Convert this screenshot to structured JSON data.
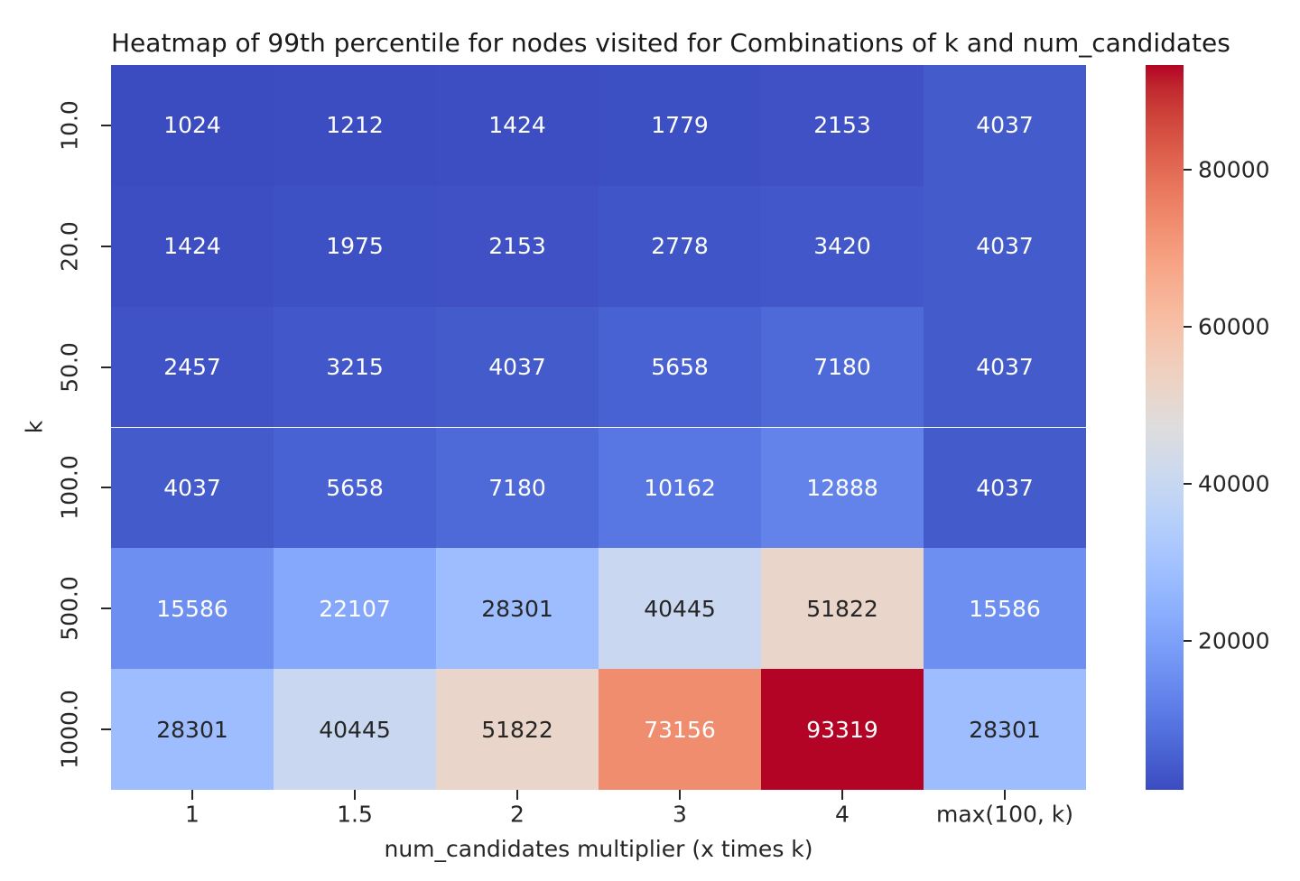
{
  "chart_data": {
    "type": "heatmap",
    "title": "Heatmap of 99th percentile for nodes visited for Combinations of k and num_candidates",
    "xlabel": "num_candidates multiplier (x times k)",
    "ylabel": "k",
    "x_ticklabels": [
      "1",
      "1.5",
      "2",
      "3",
      "4",
      "max(100, k)"
    ],
    "y_ticklabels": [
      "10.0",
      "20.0",
      "50.0",
      "100.0",
      "500.0",
      "1000.0"
    ],
    "values": [
      [
        1024,
        1212,
        1424,
        1779,
        2153,
        4037
      ],
      [
        1424,
        1975,
        2153,
        2778,
        3420,
        4037
      ],
      [
        2457,
        3215,
        4037,
        5658,
        7180,
        4037
      ],
      [
        4037,
        5658,
        7180,
        10162,
        12888,
        4037
      ],
      [
        15586,
        22107,
        28301,
        40445,
        51822,
        15586
      ],
      [
        28301,
        40445,
        51822,
        73156,
        93319,
        28301
      ]
    ],
    "vmin": 1024,
    "vmax": 93319,
    "colorbar": {
      "tick_values": [
        20000,
        40000,
        60000,
        80000
      ],
      "tick_labels": [
        "20000",
        "40000",
        "60000",
        "80000"
      ],
      "position": "right"
    },
    "colormap": {
      "name": "coolwarm",
      "anchors_rgb": [
        [
          59,
          76,
          192
        ],
        [
          68,
          90,
          204
        ],
        [
          77,
          104,
          215
        ],
        [
          87,
          117,
          225
        ],
        [
          98,
          130,
          234
        ],
        [
          108,
          142,
          241
        ],
        [
          119,
          154,
          247
        ],
        [
          130,
          165,
          251
        ],
        [
          141,
          176,
          254
        ],
        [
          152,
          185,
          255
        ],
        [
          163,
          194,
          255
        ],
        [
          174,
          201,
          253
        ],
        [
          184,
          208,
          249
        ],
        [
          194,
          213,
          244
        ],
        [
          204,
          217,
          238
        ],
        [
          213,
          219,
          230
        ],
        [
          221,
          221,
          221
        ],
        [
          229,
          216,
          209
        ],
        [
          236,
          211,
          197
        ],
        [
          241,
          204,
          185
        ],
        [
          245,
          196,
          173
        ],
        [
          247,
          187,
          160
        ],
        [
          247,
          177,
          148
        ],
        [
          247,
          166,
          135
        ],
        [
          244,
          154,
          123
        ],
        [
          241,
          141,
          111
        ],
        [
          236,
          127,
          99
        ],
        [
          229,
          112,
          88
        ],
        [
          222,
          96,
          77
        ],
        [
          213,
          80,
          66
        ],
        [
          203,
          62,
          56
        ],
        [
          192,
          40,
          47
        ],
        [
          180,
          4,
          38
        ]
      ]
    },
    "annotation_colors": {
      "on_dark": "#ffffff",
      "on_light": "#262626"
    },
    "grid": false,
    "legend": "colorbar"
  }
}
